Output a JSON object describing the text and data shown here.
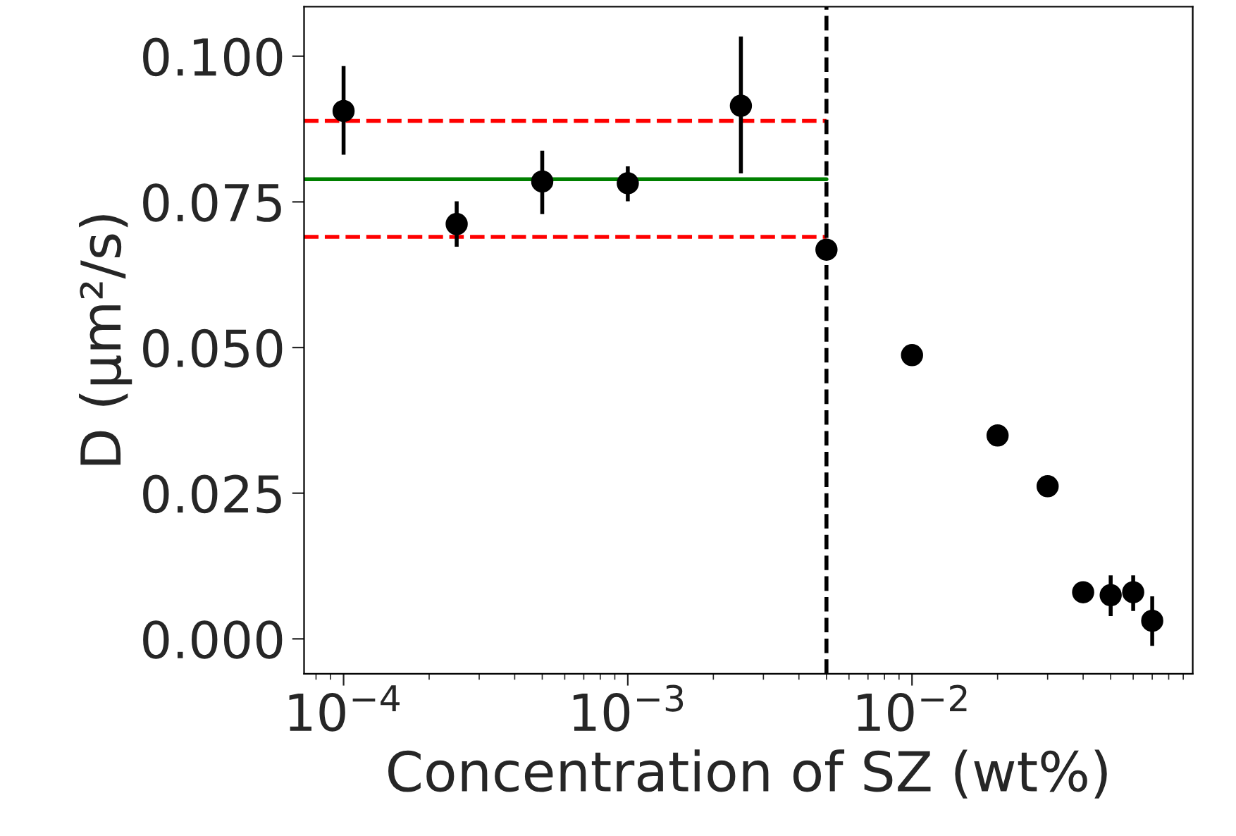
{
  "chart_data": {
    "type": "scatter",
    "xlabel": "Concentration of SZ (wt%)",
    "ylabel": "D (μm²/s)",
    "log": "x",
    "xlim": [
      7.26e-05,
      0.0972
    ],
    "ylim": [
      -0.006,
      0.1085
    ],
    "xticks": [
      {
        "value": 0.0001,
        "label": "10$^{−4}$"
      },
      {
        "value": 0.001,
        "label": "10$^{−3}$"
      },
      {
        "value": 0.01,
        "label": "10$^{−2}$"
      }
    ],
    "yticks": [
      {
        "value": 0,
        "label": "0.000"
      },
      {
        "value": 0.025,
        "label": "0.025"
      },
      {
        "value": 0.05,
        "label": "0.050"
      },
      {
        "value": 0.075,
        "label": "0.075"
      },
      {
        "value": 0.1,
        "label": "0.100"
      }
    ],
    "grid": false,
    "series": [
      {
        "type": "line",
        "color": "#008000",
        "line_style": "solid",
        "x": [
          7.26e-05,
          0.005
        ],
        "values": [
          0.0789,
          0.0789
        ]
      },
      {
        "type": "line",
        "color": "#ff0000",
        "line_style": "dashed",
        "x": [
          7.26e-05,
          0.005
        ],
        "values": [
          0.0889,
          0.0889
        ]
      },
      {
        "type": "line",
        "color": "#ff0000",
        "line_style": "dashed",
        "x": [
          7.26e-05,
          0.005
        ],
        "values": [
          0.069,
          0.069
        ]
      },
      {
        "color": "#000000",
        "marker": "circle",
        "x": [
          0.0001,
          0.00025,
          0.0005,
          0.001,
          0.0025,
          0.005,
          0.01,
          0.02,
          0.03,
          0.04,
          0.05,
          0.06,
          0.07
        ],
        "values": [
          0.0906,
          0.0712,
          0.0785,
          0.0782,
          0.0915,
          0.0668,
          0.0487,
          0.0349,
          0.0262,
          0.008,
          0.0075,
          0.008,
          0.0031
        ],
        "errors": [
          [
            0.0831,
            0.0983
          ],
          [
            0.0673,
            0.0751
          ],
          [
            0.0729,
            0.0838
          ],
          [
            0.0751,
            0.0811
          ],
          [
            0.0799,
            0.1034
          ],
          null,
          null,
          null,
          null,
          null,
          [
            0.0039,
            0.0109
          ],
          [
            0.0048,
            0.0109
          ],
          [
            -0.0012,
            0.0073
          ]
        ]
      }
    ],
    "ref_lines": [
      {
        "axis": "x",
        "value": 0.005,
        "color": "#000000",
        "line_style": "dashed"
      }
    ]
  }
}
